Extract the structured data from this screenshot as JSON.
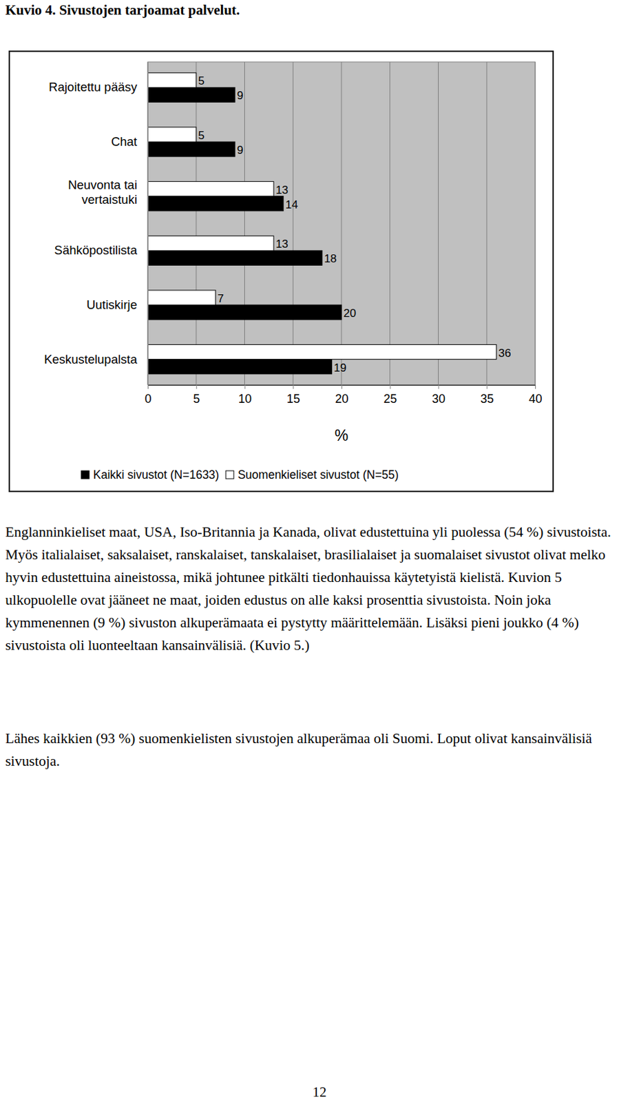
{
  "chart_data": {
    "type": "bar",
    "orientation": "horizontal",
    "title": "Kuvio 4. Sivustojen tarjoamat palvelut.",
    "x_label": "%",
    "categories": [
      "Rajoitettu pääsy",
      "Chat",
      "Neuvonta tai vertaistuki",
      "Sähköpostilista",
      "Uutiskirje",
      "Keskustelupalsta"
    ],
    "series": [
      {
        "name": "Kaikki sivustot (N=1633)",
        "color": "#000000",
        "values": [
          9,
          9,
          14,
          18,
          20,
          19
        ]
      },
      {
        "name": "Suomenkieliset sivustot (N=55)",
        "color": "#ffffff",
        "values": [
          5,
          5,
          13,
          13,
          7,
          36
        ]
      }
    ],
    "xlim": [
      0,
      40
    ],
    "xticks": [
      0,
      5,
      10,
      15,
      20,
      25,
      30,
      35,
      40
    ],
    "grid": true,
    "data_labels": true,
    "legend": "bottom"
  },
  "text": {
    "paragraphs": [
      "Englanninkieliset maat, USA, Iso-Britannia ja Kanada, olivat edustettuina yli puolessa (54 %) sivustoista. Myös italialaiset, saksalaiset, ranskalaiset, tanskalaiset, brasilialaiset ja suomalaiset sivustot olivat melko hyvin edustettuina aineistossa, mikä johtunee pitkälti tiedonhauissa käytetyistä kielistä. Kuvion 5 ulkopuolelle ovat jääneet ne maat, joiden edustus on alle kaksi prosenttia sivustoista. Noin joka kymmenennen (9 %) sivuston alkuperämaata ei pystytty määrittelemään. Lisäksi pieni joukko (4 %) sivustoista oli luonteeltaan kansainvälisiä. (Kuvio 5.)",
      "Lähes kaikkien (93 %) suomenkielisten sivustojen alkuperämaa oli Suomi. Loput olivat kansainvälisiä sivustoja."
    ],
    "page_number": "12"
  }
}
